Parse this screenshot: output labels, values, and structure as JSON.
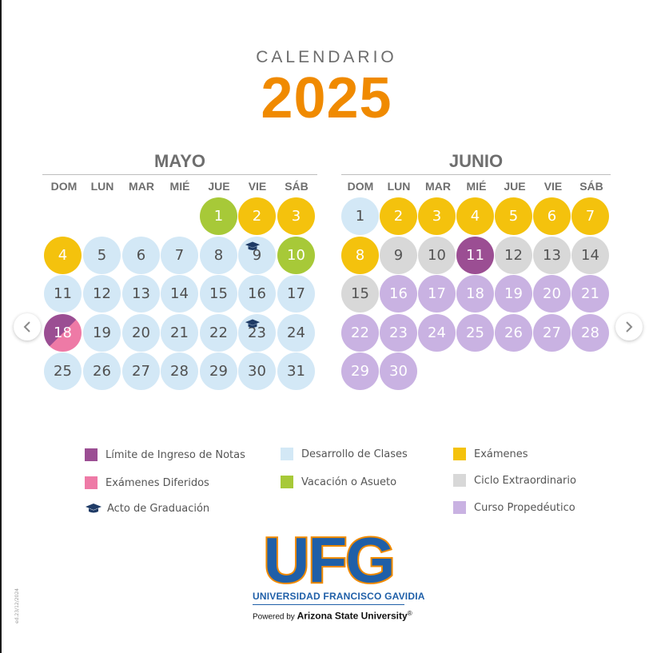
{
  "header": {
    "title": "CALENDARIO",
    "year": "2025"
  },
  "colors": {
    "clases": "#d3e8f6",
    "examenes": "#f4c20d",
    "vacacion": "#a7c938",
    "limite": "#9b4e93",
    "diferidos": "#ee7aa6",
    "extraordinario": "#d8d8d8",
    "propedeutico": "#c9b2e2",
    "graduacion": "#1f3b66"
  },
  "weekdays": [
    "DOM",
    "LUN",
    "MAR",
    "MIÉ",
    "JUE",
    "VIE",
    "SÁB"
  ],
  "months": [
    {
      "name": "MAYO",
      "first_weekday": 4,
      "days": [
        {
          "n": "1",
          "type": "vacacion"
        },
        {
          "n": "2",
          "type": "examen"
        },
        {
          "n": "3",
          "type": "examen"
        },
        {
          "n": "4",
          "type": "examen"
        },
        {
          "n": "5",
          "type": "clases"
        },
        {
          "n": "6",
          "type": "clases"
        },
        {
          "n": "7",
          "type": "clases"
        },
        {
          "n": "8",
          "type": "clases"
        },
        {
          "n": "9",
          "type": "clases",
          "graduation": true
        },
        {
          "n": "10",
          "type": "vacacion"
        },
        {
          "n": "11",
          "type": "clases"
        },
        {
          "n": "12",
          "type": "clases"
        },
        {
          "n": "13",
          "type": "clases"
        },
        {
          "n": "14",
          "type": "clases"
        },
        {
          "n": "15",
          "type": "clases"
        },
        {
          "n": "16",
          "type": "clases"
        },
        {
          "n": "17",
          "type": "clases"
        },
        {
          "n": "18",
          "type": "diferido"
        },
        {
          "n": "19",
          "type": "clases"
        },
        {
          "n": "20",
          "type": "clases"
        },
        {
          "n": "21",
          "type": "clases"
        },
        {
          "n": "22",
          "type": "clases"
        },
        {
          "n": "23",
          "type": "clases",
          "graduation": true
        },
        {
          "n": "24",
          "type": "clases"
        },
        {
          "n": "25",
          "type": "clases"
        },
        {
          "n": "26",
          "type": "clases"
        },
        {
          "n": "27",
          "type": "clases"
        },
        {
          "n": "28",
          "type": "clases"
        },
        {
          "n": "29",
          "type": "clases"
        },
        {
          "n": "30",
          "type": "clases"
        },
        {
          "n": "31",
          "type": "clases"
        }
      ]
    },
    {
      "name": "JUNIO",
      "first_weekday": 0,
      "days": [
        {
          "n": "1",
          "type": "clases"
        },
        {
          "n": "2",
          "type": "examen"
        },
        {
          "n": "3",
          "type": "examen"
        },
        {
          "n": "4",
          "type": "examen"
        },
        {
          "n": "5",
          "type": "examen"
        },
        {
          "n": "6",
          "type": "examen"
        },
        {
          "n": "7",
          "type": "examen"
        },
        {
          "n": "8",
          "type": "examen"
        },
        {
          "n": "9",
          "type": "extra"
        },
        {
          "n": "10",
          "type": "extra"
        },
        {
          "n": "11",
          "type": "limite"
        },
        {
          "n": "12",
          "type": "extra"
        },
        {
          "n": "13",
          "type": "extra"
        },
        {
          "n": "14",
          "type": "extra"
        },
        {
          "n": "15",
          "type": "extra"
        },
        {
          "n": "16",
          "type": "prope"
        },
        {
          "n": "17",
          "type": "prope"
        },
        {
          "n": "18",
          "type": "prope"
        },
        {
          "n": "19",
          "type": "prope"
        },
        {
          "n": "20",
          "type": "prope"
        },
        {
          "n": "21",
          "type": "prope"
        },
        {
          "n": "22",
          "type": "prope"
        },
        {
          "n": "23",
          "type": "prope"
        },
        {
          "n": "24",
          "type": "prope"
        },
        {
          "n": "25",
          "type": "prope"
        },
        {
          "n": "26",
          "type": "prope"
        },
        {
          "n": "27",
          "type": "prope"
        },
        {
          "n": "28",
          "type": "prope"
        },
        {
          "n": "29",
          "type": "prope"
        },
        {
          "n": "30",
          "type": "prope"
        }
      ]
    }
  ],
  "legend": {
    "limite": "Límite de Ingreso de Notas",
    "diferidos": "Exámenes Diferidos",
    "graduacion": "Acto de Graduación",
    "clases": "Desarrollo de Clases",
    "vacacion": "Vacación o Asueto",
    "examenes": "Exámenes",
    "extraordinario": "Ciclo Extraordinario",
    "propedeutico": "Curso Propedéutico"
  },
  "logo": {
    "mark": "UFG",
    "university": "UNIVERSIDAD FRANCISCO GAVIDIA",
    "powered_prefix": "Powered by",
    "powered_name": "Arizona State University",
    "registered": "®"
  },
  "code": "ed.23/12/2024",
  "nav": {
    "prev_icon": "chevron-left-icon",
    "next_icon": "chevron-right-icon"
  }
}
